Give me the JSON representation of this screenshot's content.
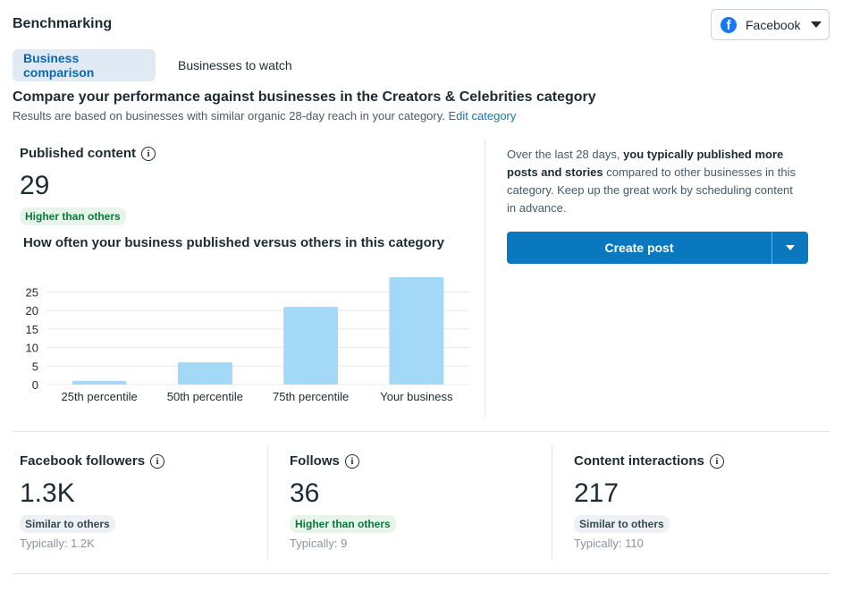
{
  "header": {
    "title": "Benchmarking"
  },
  "platform_select": {
    "label": "Facebook",
    "icon": "facebook-icon"
  },
  "tabs": [
    {
      "label": "Business comparison",
      "active": true
    },
    {
      "label": "Businesses to watch",
      "active": false
    }
  ],
  "compare": {
    "title": "Compare your performance against businesses in the Creators & Celebrities category",
    "subtitle": "Results are based on businesses with similar organic 28-day reach in your category.",
    "edit_link": "Edit category"
  },
  "published": {
    "label": "Published content",
    "value": "29",
    "badge": "Higher than others",
    "chart_title": "How often your business published versus others in this category"
  },
  "chart_data": {
    "type": "bar",
    "categories": [
      "25th percentile",
      "50th percentile",
      "75th percentile",
      "Your business"
    ],
    "values": [
      1,
      6,
      21,
      29
    ],
    "ylim": [
      0,
      29
    ],
    "yticks": [
      "0",
      "5",
      "10",
      "15",
      "20",
      "25"
    ],
    "grid": true,
    "bar_color": "#a4d8f7"
  },
  "insight": {
    "prefix": "Over the last 28 days, ",
    "bold": "you typically published more posts and stories",
    "suffix": " compared to other businesses in this category. Keep up the great work by scheduling content in advance."
  },
  "create_button": {
    "label": "Create post",
    "color": "#0a78be"
  },
  "metrics": [
    {
      "label": "Facebook followers",
      "value": "1.3K",
      "badge": "Similar to others",
      "badge_type": "gray",
      "typical": "Typically: 1.2K"
    },
    {
      "label": "Follows",
      "value": "36",
      "badge": "Higher than others",
      "badge_type": "green",
      "typical": "Typically: 9"
    },
    {
      "label": "Content interactions",
      "value": "217",
      "badge": "Similar to others",
      "badge_type": "gray",
      "typical": "Typically: 110"
    }
  ]
}
